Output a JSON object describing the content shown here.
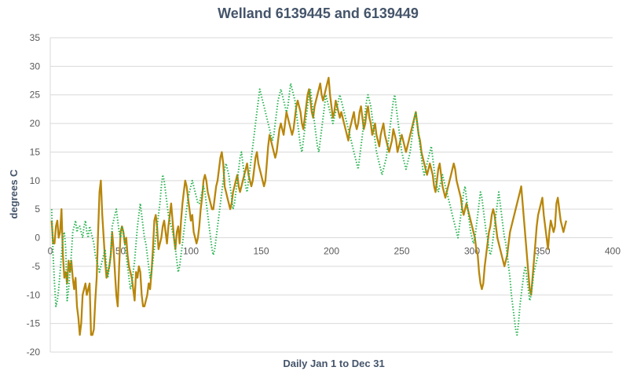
{
  "chart_data": {
    "type": "line",
    "title": "Welland 6139445 and 6139449",
    "xlabel": "Daily Jan 1 to Dec 31",
    "ylabel": "degrees C",
    "xlim": [
      0,
      400
    ],
    "ylim": [
      -20,
      35
    ],
    "x_ticks": [
      0,
      50,
      100,
      150,
      200,
      250,
      300,
      350,
      400
    ],
    "y_ticks": [
      -20,
      -15,
      -10,
      -5,
      0,
      5,
      10,
      15,
      20,
      25,
      30,
      35
    ],
    "x_step": 1,
    "grid": true,
    "legend": "none",
    "series": [
      {
        "color": "#b8860b",
        "style": "solid",
        "values": [
          3,
          -1,
          -1,
          2,
          3,
          0,
          1,
          5,
          -3,
          -7,
          -6,
          -8,
          -4,
          -6,
          -4,
          -7,
          -9,
          -7,
          -12,
          -14,
          -17,
          -15,
          -10,
          -9,
          -8,
          -10,
          -9,
          -8,
          -17,
          -17,
          -16,
          -11,
          -7,
          1,
          8,
          10,
          4,
          0,
          -4,
          -7,
          -6,
          -5,
          -3,
          1,
          -2,
          -6,
          -10,
          -12,
          -5,
          1,
          2,
          1,
          -1,
          0,
          -3,
          -5,
          -6,
          -7,
          -9,
          -11,
          -6,
          -7,
          -5,
          -6,
          -10,
          -12,
          -12,
          -11,
          -10,
          -8,
          -9,
          -6,
          -2,
          3,
          4,
          2,
          -2,
          -1,
          0,
          2,
          3,
          1,
          -1,
          2,
          4,
          6,
          3,
          0,
          -2,
          1,
          2,
          -1,
          3,
          6,
          8,
          10,
          9,
          7,
          5,
          3,
          4,
          1,
          0,
          -1,
          0,
          2,
          5,
          7,
          10,
          11,
          10,
          8,
          7,
          6,
          5,
          5,
          7,
          9,
          10,
          12,
          14,
          15,
          13,
          9,
          8,
          7,
          6,
          5,
          6,
          8,
          9,
          10,
          11,
          9,
          8,
          9,
          10,
          11,
          12,
          13,
          11,
          10,
          9,
          10,
          12,
          14,
          15,
          13,
          12,
          11,
          10,
          9,
          10,
          13,
          16,
          18,
          17,
          16,
          15,
          14,
          15,
          17,
          19,
          20,
          19,
          18,
          20,
          22,
          21,
          20,
          19,
          18,
          19,
          21,
          23,
          24,
          23,
          22,
          20,
          19,
          21,
          23,
          25,
          26,
          24,
          22,
          21,
          23,
          24,
          25,
          26,
          27,
          25,
          24,
          25,
          26,
          27,
          28,
          25,
          23,
          21,
          22,
          24,
          23,
          22,
          21,
          22,
          21,
          20,
          19,
          18,
          17,
          19,
          20,
          21,
          22,
          20,
          19,
          20,
          22,
          23,
          21,
          19,
          20,
          22,
          23,
          21,
          20,
          18,
          19,
          20,
          18,
          17,
          16,
          18,
          19,
          20,
          18,
          17,
          16,
          15,
          16,
          17,
          19,
          18,
          17,
          15,
          16,
          17,
          18,
          17,
          16,
          15,
          16,
          17,
          18,
          19,
          20,
          21,
          22,
          20,
          18,
          17,
          15,
          14,
          13,
          12,
          11,
          12,
          13,
          12,
          11,
          9,
          8,
          10,
          12,
          13,
          11,
          9,
          8,
          7,
          8,
          9,
          10,
          11,
          12,
          13,
          12,
          10,
          9,
          8,
          7,
          5,
          4,
          5,
          6,
          5,
          4,
          3,
          2,
          1,
          0,
          -2,
          -3,
          -6,
          -8,
          -9,
          -8,
          -5,
          -3,
          -1,
          1,
          2,
          4,
          5,
          4,
          2,
          0,
          -1,
          -2,
          -3,
          -4,
          -5,
          -4,
          -3,
          -1,
          1,
          2,
          3,
          4,
          5,
          6,
          7,
          8,
          9,
          6,
          3,
          0,
          -3,
          -6,
          -9,
          -10,
          -7,
          -4,
          -1,
          2,
          4,
          5,
          6,
          7,
          4,
          2,
          0,
          -2,
          1,
          3,
          2,
          1,
          2,
          6,
          7,
          5,
          3,
          2,
          1,
          2,
          3
        ]
      },
      {
        "color": "#22b14c",
        "style": "dotted",
        "values": [
          5,
          -3,
          -8,
          -12,
          -11,
          -9,
          -6,
          -3,
          0,
          1,
          -2,
          -11,
          -9,
          -6,
          -3,
          1,
          2,
          3,
          1,
          2,
          2,
          1,
          0,
          2,
          3,
          1,
          0,
          2,
          1,
          0,
          -1,
          -3,
          -4,
          -5,
          -6,
          -5,
          -4,
          -3,
          -2,
          -5,
          -7,
          -5,
          -3,
          2,
          3,
          4,
          5,
          3,
          1,
          0,
          2,
          1,
          -1,
          -3,
          -5,
          -7,
          -9,
          -8,
          -6,
          -4,
          -1,
          2,
          4,
          6,
          4,
          2,
          0,
          -1,
          -3,
          -5,
          -7,
          -6,
          -4,
          -2,
          0,
          2,
          4,
          6,
          9,
          11,
          10,
          8,
          6,
          4,
          3,
          2,
          1,
          0,
          -2,
          -4,
          -6,
          -5,
          -3,
          -1,
          1,
          3,
          5,
          7,
          8,
          9,
          10,
          9,
          8,
          7,
          6,
          6,
          7,
          8,
          9,
          8,
          6,
          4,
          2,
          0,
          -2,
          -3,
          -2,
          0,
          2,
          4,
          6,
          8,
          10,
          12,
          13,
          12,
          11,
          9,
          7,
          5,
          6,
          8,
          10,
          12,
          14,
          15,
          13,
          11,
          9,
          8,
          10,
          12,
          14,
          16,
          18,
          20,
          22,
          24,
          26,
          25,
          24,
          23,
          22,
          21,
          20,
          19,
          18,
          17,
          18,
          20,
          22,
          24,
          25,
          26,
          25,
          24,
          23,
          22,
          23,
          25,
          27,
          26,
          25,
          24,
          22,
          20,
          18,
          16,
          15,
          17,
          19,
          21,
          23,
          25,
          26,
          24,
          22,
          20,
          18,
          16,
          15,
          17,
          19,
          21,
          23,
          25,
          24,
          23,
          22,
          21,
          20,
          21,
          22,
          23,
          24,
          25,
          24,
          23,
          22,
          21,
          20,
          19,
          18,
          17,
          16,
          15,
          14,
          13,
          12,
          14,
          16,
          18,
          20,
          22,
          24,
          25,
          24,
          23,
          21,
          19,
          17,
          15,
          14,
          13,
          12,
          11,
          12,
          13,
          14,
          16,
          18,
          20,
          22,
          24,
          25,
          23,
          21,
          19,
          17,
          15,
          14,
          13,
          12,
          13,
          14,
          15,
          17,
          19,
          21,
          22,
          20,
          18,
          16,
          14,
          12,
          11,
          12,
          13,
          14,
          15,
          16,
          14,
          12,
          10,
          9,
          8,
          9,
          10,
          11,
          10,
          9,
          8,
          7,
          6,
          5,
          4,
          3,
          2,
          1,
          0,
          2,
          4,
          6,
          8,
          9,
          7,
          5,
          3,
          1,
          0,
          -1,
          0,
          2,
          4,
          6,
          8,
          7,
          5,
          3,
          1,
          0,
          -2,
          -3,
          -2,
          0,
          2,
          4,
          6,
          8,
          6,
          4,
          2,
          0,
          -1,
          -3,
          -5,
          -7,
          -10,
          -12,
          -14,
          -16,
          -17,
          -15,
          -12,
          -10,
          -8,
          -6,
          -5,
          -7,
          -9,
          -11,
          -10,
          -8,
          -6,
          -5,
          -4,
          -3
        ]
      }
    ]
  }
}
